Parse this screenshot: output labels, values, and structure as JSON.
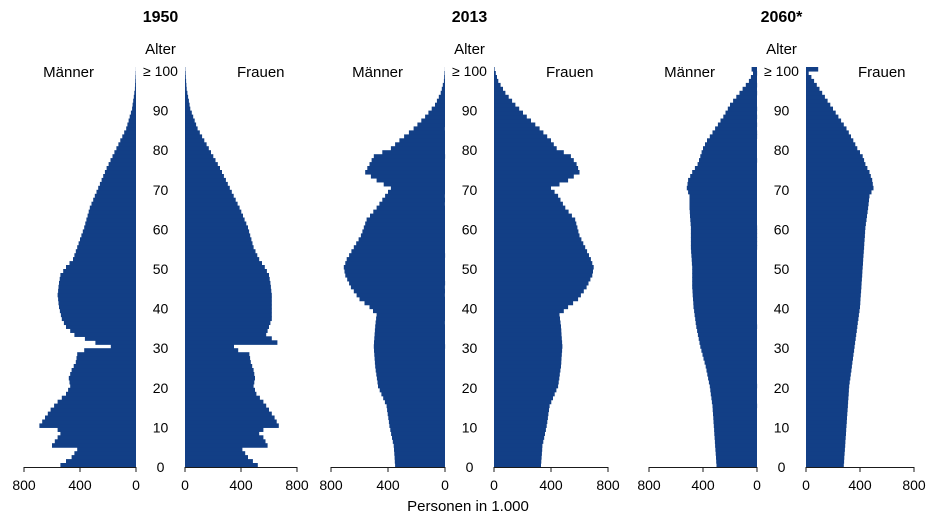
{
  "chart_data": {
    "type": "population_pyramid",
    "x_label": "Personen in 1.000",
    "age_axis_label": "Alter",
    "age_ticks": [
      "0",
      "10",
      "20",
      "30",
      "40",
      "50",
      "60",
      "70",
      "80",
      "90",
      "≥ 100"
    ],
    "x_ticks": [
      800,
      400,
      0
    ],
    "x_ticks_right": [
      0,
      400,
      800
    ],
    "xlim": [
      0,
      800
    ],
    "age_range": [
      0,
      100
    ],
    "colors": {
      "bars": "#123f86",
      "text": "#1a1a1a"
    },
    "panels": [
      {
        "title": "1950",
        "left_label": "Männer",
        "right_label": "Frauen",
        "men": [
          [
            0,
            540
          ],
          [
            2,
            460
          ],
          [
            4,
            420
          ],
          [
            5,
            600
          ],
          [
            7,
            560
          ],
          [
            8,
            540
          ],
          [
            9,
            560
          ],
          [
            10,
            690
          ],
          [
            12,
            650
          ],
          [
            14,
            610
          ],
          [
            16,
            560
          ],
          [
            18,
            500
          ],
          [
            20,
            470
          ],
          [
            22,
            480
          ],
          [
            24,
            460
          ],
          [
            26,
            430
          ],
          [
            28,
            420
          ],
          [
            29,
            370
          ],
          [
            30,
            180
          ],
          [
            31,
            290
          ],
          [
            33,
            440
          ],
          [
            35,
            500
          ],
          [
            37,
            530
          ],
          [
            40,
            550
          ],
          [
            43,
            560
          ],
          [
            46,
            550
          ],
          [
            48,
            540
          ],
          [
            50,
            500
          ],
          [
            52,
            450
          ],
          [
            55,
            420
          ],
          [
            60,
            370
          ],
          [
            65,
            330
          ],
          [
            70,
            270
          ],
          [
            75,
            210
          ],
          [
            80,
            140
          ],
          [
            85,
            70
          ],
          [
            90,
            28
          ],
          [
            95,
            8
          ],
          [
            100,
            1
          ]
        ],
        "women": [
          [
            0,
            520
          ],
          [
            2,
            450
          ],
          [
            4,
            410
          ],
          [
            5,
            590
          ],
          [
            7,
            560
          ],
          [
            8,
            530
          ],
          [
            9,
            560
          ],
          [
            10,
            670
          ],
          [
            12,
            640
          ],
          [
            14,
            600
          ],
          [
            16,
            560
          ],
          [
            18,
            510
          ],
          [
            20,
            490
          ],
          [
            22,
            500
          ],
          [
            24,
            490
          ],
          [
            26,
            470
          ],
          [
            28,
            460
          ],
          [
            29,
            380
          ],
          [
            30,
            350
          ],
          [
            31,
            660
          ],
          [
            33,
            580
          ],
          [
            35,
            600
          ],
          [
            37,
            620
          ],
          [
            40,
            620
          ],
          [
            43,
            620
          ],
          [
            46,
            610
          ],
          [
            48,
            600
          ],
          [
            50,
            570
          ],
          [
            52,
            530
          ],
          [
            55,
            490
          ],
          [
            60,
            450
          ],
          [
            65,
            390
          ],
          [
            70,
            320
          ],
          [
            75,
            250
          ],
          [
            80,
            170
          ],
          [
            85,
            90
          ],
          [
            90,
            38
          ],
          [
            95,
            12
          ],
          [
            100,
            2
          ]
        ]
      },
      {
        "title": "2013",
        "left_label": "Männer",
        "right_label": "Frauen",
        "men": [
          [
            0,
            350
          ],
          [
            5,
            360
          ],
          [
            10,
            390
          ],
          [
            15,
            410
          ],
          [
            20,
            470
          ],
          [
            25,
            490
          ],
          [
            30,
            500
          ],
          [
            35,
            490
          ],
          [
            38,
            480
          ],
          [
            40,
            530
          ],
          [
            42,
            600
          ],
          [
            45,
            660
          ],
          [
            48,
            700
          ],
          [
            50,
            710
          ],
          [
            52,
            690
          ],
          [
            55,
            640
          ],
          [
            58,
            590
          ],
          [
            62,
            550
          ],
          [
            65,
            480
          ],
          [
            68,
            420
          ],
          [
            70,
            380
          ],
          [
            72,
            480
          ],
          [
            74,
            560
          ],
          [
            76,
            530
          ],
          [
            78,
            500
          ],
          [
            80,
            380
          ],
          [
            82,
            320
          ],
          [
            85,
            220
          ],
          [
            88,
            140
          ],
          [
            91,
            70
          ],
          [
            94,
            30
          ],
          [
            97,
            8
          ],
          [
            100,
            1
          ]
        ],
        "women": [
          [
            0,
            330
          ],
          [
            5,
            340
          ],
          [
            10,
            370
          ],
          [
            15,
            390
          ],
          [
            20,
            450
          ],
          [
            25,
            470
          ],
          [
            30,
            480
          ],
          [
            35,
            470
          ],
          [
            38,
            460
          ],
          [
            40,
            520
          ],
          [
            42,
            590
          ],
          [
            45,
            650
          ],
          [
            48,
            690
          ],
          [
            50,
            700
          ],
          [
            52,
            680
          ],
          [
            55,
            640
          ],
          [
            58,
            600
          ],
          [
            62,
            570
          ],
          [
            65,
            500
          ],
          [
            68,
            450
          ],
          [
            70,
            400
          ],
          [
            72,
            520
          ],
          [
            74,
            600
          ],
          [
            76,
            580
          ],
          [
            78,
            540
          ],
          [
            80,
            440
          ],
          [
            82,
            400
          ],
          [
            85,
            320
          ],
          [
            88,
            230
          ],
          [
            91,
            150
          ],
          [
            94,
            80
          ],
          [
            97,
            30
          ],
          [
            100,
            4
          ]
        ]
      },
      {
        "title": "2060*",
        "left_label": "Männer",
        "right_label": "Frauen",
        "men": [
          [
            0,
            300
          ],
          [
            5,
            310
          ],
          [
            10,
            320
          ],
          [
            15,
            330
          ],
          [
            20,
            350
          ],
          [
            25,
            380
          ],
          [
            30,
            420
          ],
          [
            35,
            450
          ],
          [
            40,
            470
          ],
          [
            45,
            480
          ],
          [
            50,
            480
          ],
          [
            55,
            490
          ],
          [
            60,
            490
          ],
          [
            65,
            500
          ],
          [
            68,
            500
          ],
          [
            70,
            520
          ],
          [
            72,
            510
          ],
          [
            74,
            480
          ],
          [
            76,
            440
          ],
          [
            78,
            420
          ],
          [
            80,
            400
          ],
          [
            82,
            370
          ],
          [
            85,
            310
          ],
          [
            88,
            250
          ],
          [
            91,
            200
          ],
          [
            94,
            130
          ],
          [
            97,
            60
          ],
          [
            99,
            30
          ],
          [
            100,
            40
          ]
        ],
        "women": [
          [
            0,
            280
          ],
          [
            5,
            290
          ],
          [
            10,
            300
          ],
          [
            15,
            310
          ],
          [
            20,
            320
          ],
          [
            25,
            340
          ],
          [
            30,
            360
          ],
          [
            35,
            380
          ],
          [
            40,
            400
          ],
          [
            45,
            410
          ],
          [
            50,
            420
          ],
          [
            55,
            430
          ],
          [
            60,
            440
          ],
          [
            65,
            460
          ],
          [
            68,
            470
          ],
          [
            70,
            500
          ],
          [
            72,
            490
          ],
          [
            74,
            470
          ],
          [
            76,
            440
          ],
          [
            78,
            420
          ],
          [
            80,
            380
          ],
          [
            82,
            350
          ],
          [
            85,
            300
          ],
          [
            88,
            240
          ],
          [
            91,
            180
          ],
          [
            94,
            120
          ],
          [
            97,
            60
          ],
          [
            99,
            20
          ],
          [
            100,
            90
          ]
        ]
      }
    ]
  }
}
